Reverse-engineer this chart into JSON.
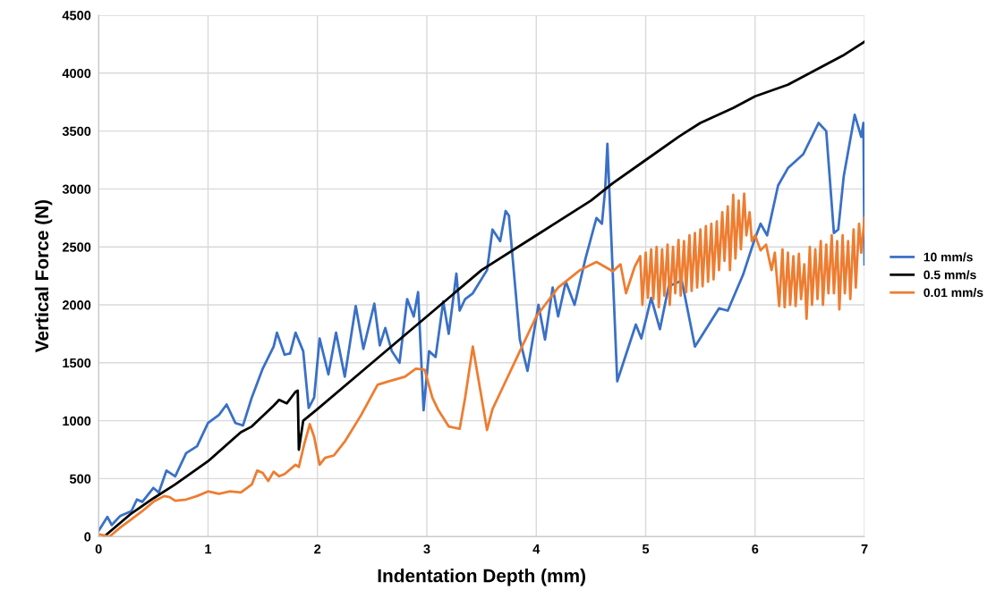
{
  "chart_data": {
    "type": "line",
    "xlabel": "Indentation Depth (mm)",
    "ylabel": "Vertical Force (N)",
    "xlim": [
      0,
      7
    ],
    "xticks": [
      0,
      1,
      2,
      3,
      4,
      5,
      6,
      7
    ],
    "ylim": [
      0,
      4500
    ],
    "yticks": [
      0,
      500,
      1000,
      1500,
      2000,
      2500,
      3000,
      3500,
      4000,
      4500
    ],
    "grid": true,
    "legend": "right",
    "line_style": "solid",
    "marker": "none",
    "series": [
      {
        "name": "10 mm/s",
        "color": "#3a70c6",
        "x": [
          0,
          0.08,
          0.12,
          0.2,
          0.3,
          0.35,
          0.4,
          0.5,
          0.55,
          0.62,
          0.7,
          0.8,
          0.9,
          1.0,
          1.1,
          1.17,
          1.25,
          1.32,
          1.4,
          1.5,
          1.6,
          1.63,
          1.7,
          1.75,
          1.8,
          1.87,
          1.92,
          1.97,
          2.02,
          2.1,
          2.17,
          2.25,
          2.35,
          2.42,
          2.52,
          2.57,
          2.62,
          2.68,
          2.75,
          2.82,
          2.88,
          2.92,
          2.97,
          3.02,
          3.08,
          3.15,
          3.2,
          3.27,
          3.3,
          3.35,
          3.42,
          3.55,
          3.6,
          3.67,
          3.72,
          3.75,
          3.85,
          3.92,
          4.02,
          4.08,
          4.15,
          4.2,
          4.27,
          4.35,
          4.45,
          4.55,
          4.6,
          4.63,
          4.65,
          4.74,
          4.91,
          4.96,
          5.05,
          5.13,
          5.21,
          5.33,
          5.45,
          5.67,
          5.75,
          5.89,
          5.99,
          6.05,
          6.11,
          6.21,
          6.3,
          6.44,
          6.58,
          6.65,
          6.72,
          6.76,
          6.81,
          6.91,
          6.97,
          6.99,
          7.0
        ],
        "values": [
          50,
          170,
          100,
          180,
          220,
          320,
          300,
          420,
          380,
          570,
          520,
          720,
          780,
          980,
          1050,
          1140,
          980,
          960,
          1200,
          1450,
          1640,
          1760,
          1570,
          1580,
          1760,
          1600,
          1110,
          1200,
          1710,
          1400,
          1760,
          1380,
          1990,
          1620,
          2010,
          1650,
          1800,
          1600,
          1500,
          2050,
          1900,
          2110,
          1090,
          1600,
          1550,
          2030,
          1750,
          2270,
          1950,
          2050,
          2100,
          2300,
          2650,
          2550,
          2810,
          2770,
          1700,
          1430,
          2000,
          1700,
          2150,
          1900,
          2200,
          2000,
          2400,
          2750,
          2700,
          3000,
          3390,
          1340,
          1830,
          1710,
          2060,
          1790,
          2160,
          2210,
          1640,
          1970,
          1950,
          2260,
          2550,
          2700,
          2600,
          3030,
          3180,
          3300,
          3570,
          3500,
          2620,
          2650,
          3110,
          3640,
          3450,
          3570,
          2350
        ]
      },
      {
        "name": "0.5 mm/s",
        "color": "#000000",
        "x": [
          0.05,
          0.3,
          0.5,
          0.7,
          1.0,
          1.3,
          1.4,
          1.6,
          1.65,
          1.72,
          1.8,
          1.82,
          1.83,
          1.87,
          2.0,
          2.5,
          3.0,
          3.5,
          4.0,
          4.5,
          4.7,
          5.0,
          5.3,
          5.5,
          5.8,
          6.0,
          6.3,
          6.5,
          6.8,
          7.0
        ],
        "values": [
          0,
          200,
          330,
          450,
          650,
          900,
          950,
          1130,
          1180,
          1150,
          1250,
          1260,
          750,
          1000,
          1100,
          1500,
          1900,
          2300,
          2600,
          2900,
          3050,
          3250,
          3450,
          3570,
          3700,
          3800,
          3900,
          4000,
          4150,
          4270
        ]
      },
      {
        "name": "0.01 mm/s",
        "color": "#ed7d31",
        "x": [
          0.0,
          0.1,
          0.2,
          0.3,
          0.4,
          0.5,
          0.6,
          0.65,
          0.7,
          0.8,
          0.9,
          1.0,
          1.1,
          1.2,
          1.3,
          1.4,
          1.45,
          1.5,
          1.55,
          1.6,
          1.65,
          1.7,
          1.8,
          1.83,
          1.88,
          1.93,
          1.97,
          2.02,
          2.07,
          2.15,
          2.25,
          2.4,
          2.55,
          2.65,
          2.8,
          2.9,
          2.98,
          3.05,
          3.1,
          3.2,
          3.3,
          3.35,
          3.42,
          3.5,
          3.55,
          3.6,
          3.7,
          3.85,
          4.0,
          4.2,
          4.4,
          4.55,
          4.7,
          4.77,
          4.82,
          4.9,
          4.95,
          4.97,
          5.0,
          5.02,
          5.05,
          5.07,
          5.1,
          5.12,
          5.15,
          5.17,
          5.2,
          5.22,
          5.25,
          5.27,
          5.3,
          5.32,
          5.35,
          5.37,
          5.4,
          5.42,
          5.45,
          5.47,
          5.5,
          5.52,
          5.55,
          5.57,
          5.6,
          5.62,
          5.65,
          5.67,
          5.7,
          5.72,
          5.75,
          5.77,
          5.8,
          5.82,
          5.85,
          5.87,
          5.9,
          5.92,
          5.95,
          5.97,
          6.0,
          6.05,
          6.1,
          6.15,
          6.18,
          6.22,
          6.25,
          6.27,
          6.3,
          6.32,
          6.35,
          6.37,
          6.4,
          6.42,
          6.45,
          6.47,
          6.5,
          6.52,
          6.55,
          6.57,
          6.6,
          6.62,
          6.65,
          6.67,
          6.7,
          6.72,
          6.75,
          6.77,
          6.8,
          6.82,
          6.85,
          6.87,
          6.9,
          6.92,
          6.95,
          6.97,
          7.0
        ],
        "values": [
          20,
          0,
          80,
          150,
          220,
          300,
          350,
          340,
          310,
          320,
          350,
          390,
          370,
          390,
          380,
          450,
          570,
          550,
          480,
          560,
          520,
          540,
          620,
          600,
          800,
          970,
          860,
          620,
          680,
          700,
          820,
          1050,
          1310,
          1340,
          1380,
          1450,
          1440,
          1200,
          1100,
          950,
          930,
          1200,
          1640,
          1200,
          920,
          1100,
          1300,
          1600,
          1900,
          2150,
          2300,
          2370,
          2290,
          2350,
          2100,
          2330,
          2420,
          2000,
          2450,
          2060,
          2480,
          2050,
          2500,
          1980,
          2480,
          2080,
          2520,
          2000,
          2500,
          2100,
          2560,
          2080,
          2550,
          2110,
          2600,
          2120,
          2620,
          2150,
          2650,
          2160,
          2680,
          2200,
          2700,
          2220,
          2720,
          2300,
          2800,
          2380,
          2850,
          2300,
          2950,
          2400,
          2900,
          2480,
          2960,
          2600,
          2800,
          2550,
          2600,
          2470,
          2520,
          2300,
          2450,
          1990,
          2480,
          1980,
          2450,
          2000,
          2420,
          1990,
          2440,
          2050,
          2350,
          1880,
          2500,
          2000,
          2480,
          2050,
          2550,
          2000,
          2520,
          2100,
          2600,
          2100,
          2550,
          1960,
          2600,
          2100,
          2550,
          2050,
          2650,
          2150,
          2700,
          2450,
          2750
        ]
      }
    ]
  }
}
